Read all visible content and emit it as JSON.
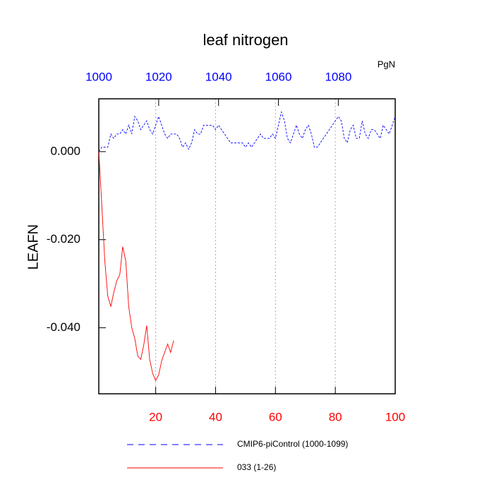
{
  "chart_data": {
    "type": "line",
    "title": "leaf nitrogen",
    "units": "PgN",
    "ylabel": "LEAFN",
    "xlim": [
      1,
      100
    ],
    "xticks": [
      20,
      40,
      60,
      80,
      100
    ],
    "x2lim": [
      1000,
      1099
    ],
    "x2ticks": [
      1000,
      1020,
      1040,
      1060,
      1080
    ],
    "ylim": [
      -0.055,
      0.012
    ],
    "yticks": [
      {
        "value": 0,
        "label": "0.000"
      },
      {
        "value": -0.02,
        "label": "-0.020"
      },
      {
        "value": -0.04,
        "label": "-0.040"
      }
    ],
    "grid": true,
    "series": [
      {
        "name": "CMIP6-piControl (1000-1099)",
        "color": "#0000ff",
        "dash": true,
        "axis": "x2",
        "x": [
          1000,
          1001,
          1002,
          1003,
          1004,
          1005,
          1006,
          1007,
          1008,
          1009,
          1010,
          1011,
          1012,
          1013,
          1014,
          1015,
          1016,
          1017,
          1018,
          1019,
          1020,
          1021,
          1022,
          1023,
          1024,
          1025,
          1026,
          1027,
          1028,
          1029,
          1030,
          1031,
          1032,
          1033,
          1034,
          1035,
          1036,
          1037,
          1038,
          1039,
          1040,
          1041,
          1042,
          1043,
          1044,
          1045,
          1046,
          1047,
          1048,
          1049,
          1050,
          1051,
          1052,
          1053,
          1054,
          1055,
          1056,
          1057,
          1058,
          1059,
          1060,
          1061,
          1062,
          1063,
          1064,
          1065,
          1066,
          1067,
          1068,
          1069,
          1070,
          1071,
          1072,
          1073,
          1074,
          1075,
          1076,
          1077,
          1078,
          1079,
          1080,
          1081,
          1082,
          1083,
          1084,
          1085,
          1086,
          1087,
          1088,
          1089,
          1090,
          1091,
          1092,
          1093,
          1094,
          1095,
          1096,
          1097,
          1098,
          1099
        ],
        "values": [
          0,
          0.001,
          0.001,
          0.001,
          0.004,
          0.003,
          0.004,
          0.004,
          0.005,
          0.004,
          0.006,
          0.004,
          0.008,
          0.007,
          0.005,
          0.006,
          0.007,
          0.005,
          0.004,
          0.006,
          0.008,
          0.006,
          0.004,
          0.003,
          0.004,
          0.004,
          0.004,
          0.003,
          0.001,
          0.002,
          0.0005,
          0.002,
          0.005,
          0.004,
          0.004,
          0.006,
          0.006,
          0.006,
          0.006,
          0.005,
          0.006,
          0.005,
          0.004,
          0.003,
          0.002,
          0.002,
          0.002,
          0.002,
          0.002,
          0.001,
          0.002,
          0.001,
          0.002,
          0.003,
          0.004,
          0.003,
          0.003,
          0.003,
          0.004,
          0.003,
          0.006,
          0.009,
          0.007,
          0.003,
          0.002,
          0.004,
          0.006,
          0.004,
          0.003,
          0.005,
          0.006,
          0.004,
          0.001,
          0.001,
          0.002,
          0.003,
          0.004,
          0.005,
          0.006,
          0.007,
          0.008,
          0.007,
          0.003,
          0.002,
          0.005,
          0.006,
          0.003,
          0.003,
          0.007,
          0.004,
          0.003,
          0.005,
          0.005,
          0.004,
          0.003,
          0.006,
          0.005,
          0.004,
          0.006,
          0.008
        ]
      },
      {
        "name": "033 (1-26)",
        "color": "#ff0000",
        "dash": false,
        "x": [
          1,
          2,
          3,
          4,
          5,
          6,
          7,
          8,
          9,
          10,
          11,
          12,
          13,
          14,
          15,
          16,
          17,
          18,
          19,
          20,
          21,
          22,
          23,
          24,
          25,
          26
        ],
        "values": [
          0,
          -0.012,
          -0.0248,
          -0.0328,
          -0.0352,
          -0.032,
          -0.0293,
          -0.028,
          -0.0216,
          -0.0248,
          -0.0352,
          -0.04,
          -0.0424,
          -0.0464,
          -0.0472,
          -0.044,
          -0.0395,
          -0.0472,
          -0.0504,
          -0.052,
          -0.0507,
          -0.0475,
          -0.0456,
          -0.0437,
          -0.0456,
          -0.0429
        ]
      }
    ]
  }
}
